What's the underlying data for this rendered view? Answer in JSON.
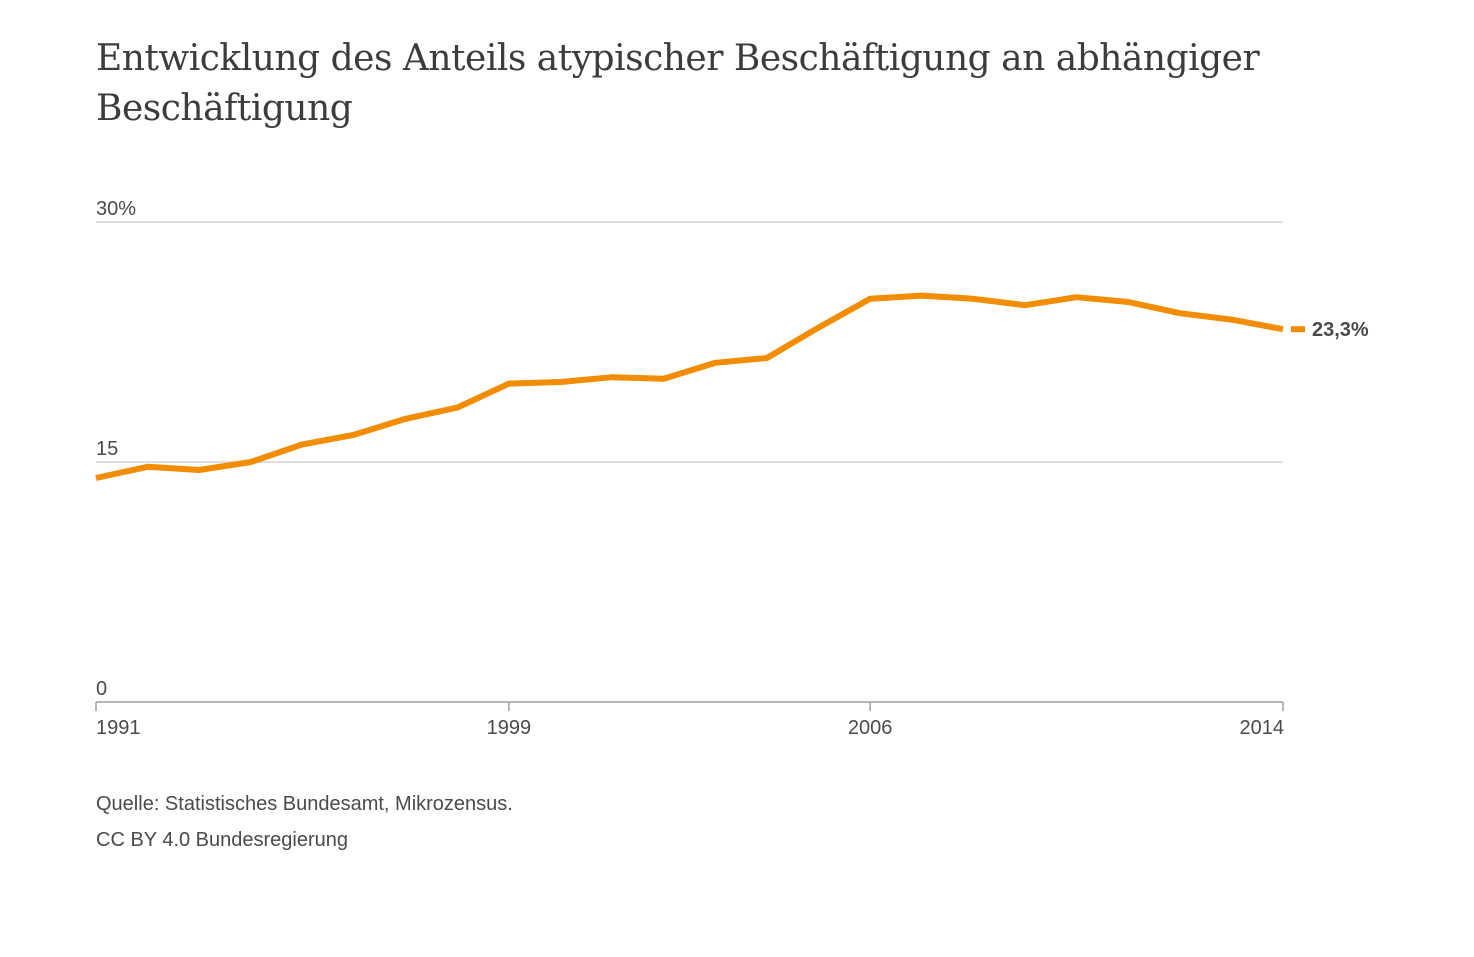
{
  "chart_data": {
    "type": "line",
    "title": "Entwicklung des Anteils atypischer Beschäftigung an abhängiger Beschäftigung",
    "xlabel": "",
    "ylabel": "",
    "x": [
      1991,
      1992,
      1993,
      1994,
      1995,
      1996,
      1997,
      1998,
      1999,
      2000,
      2001,
      2002,
      2003,
      2004,
      2005,
      2006,
      2007,
      2008,
      2009,
      2010,
      2011,
      2012,
      2013,
      2014
    ],
    "series": [
      {
        "color": "#f28c00",
        "values": [
          14.0,
          14.7,
          14.5,
          15.0,
          16.1,
          16.7,
          17.7,
          18.4,
          19.9,
          20.0,
          20.3,
          20.2,
          21.2,
          21.5,
          23.4,
          25.2,
          25.4,
          25.2,
          24.8,
          25.3,
          25.0,
          24.3,
          23.9,
          23.3
        ]
      }
    ],
    "xlim": [
      1991,
      2014
    ],
    "ylim": [
      0,
      30
    ],
    "y_ticks": [
      {
        "value": 0,
        "label": "0"
      },
      {
        "value": 15,
        "label": "15"
      },
      {
        "value": 30,
        "label": "30%"
      }
    ],
    "x_ticks": [
      {
        "value": 1991,
        "label": "1991"
      },
      {
        "value": 1999,
        "label": "1999"
      },
      {
        "value": 2006,
        "label": "2006"
      },
      {
        "value": 2014,
        "label": "2014"
      }
    ],
    "end_label": "23,3%",
    "grid": true,
    "gridline_color": "#d4d4d4",
    "axis_color": "#9e9e9e",
    "text_color": "#4a4a4a"
  },
  "source": {
    "line1": "Quelle: Statistisches Bundesamt, Mikrozensus.",
    "line2": "CC BY 4.0 Bundesregierung"
  }
}
